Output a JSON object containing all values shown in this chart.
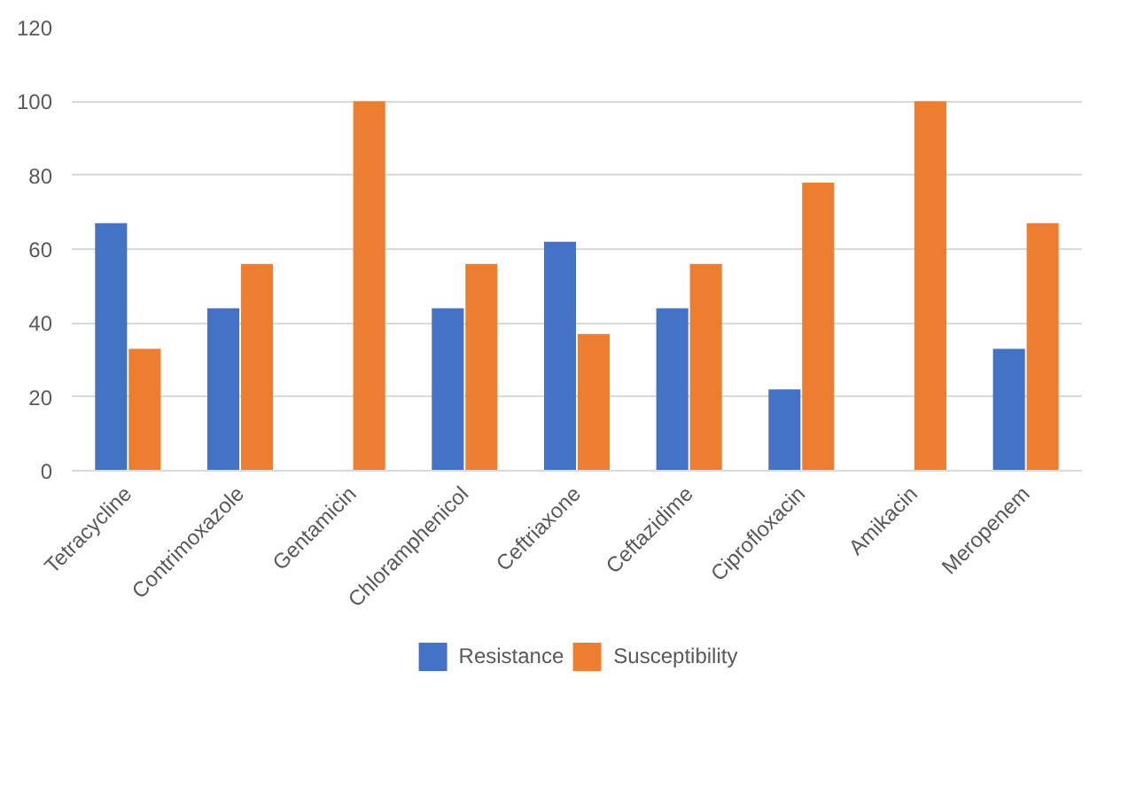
{
  "chart_data": {
    "type": "bar",
    "categories": [
      "Tetracycline",
      "Contrimoxazole",
      "Gentamicin",
      "Chloramphenicol",
      "Ceftriaxone",
      "Ceftazidime",
      "Ciprofloxacin",
      "Amikacin",
      "Meropenem"
    ],
    "series": [
      {
        "name": "Resistance",
        "color": "#4472c4",
        "values": [
          67,
          44,
          0,
          44,
          62,
          44,
          22,
          0,
          33
        ]
      },
      {
        "name": "Susceptibility",
        "color": "#ed7d31",
        "values": [
          33,
          56,
          100,
          56,
          37,
          56,
          78,
          100,
          67
        ]
      }
    ],
    "ylim": [
      0,
      120
    ],
    "yticks": [
      0,
      20,
      40,
      60,
      80,
      100,
      120
    ],
    "grid": "y",
    "legend": "bottom"
  }
}
